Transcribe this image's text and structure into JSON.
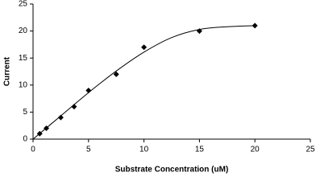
{
  "chart_data": {
    "type": "scatter",
    "x_label": "Substrate Concentration (uM)",
    "y_label": "Current",
    "xlim": [
      0,
      25
    ],
    "xticks": [
      0,
      5,
      10,
      15,
      20,
      25
    ],
    "ylim": [
      0,
      25
    ],
    "yticks": [
      0,
      5,
      10,
      15,
      20,
      25
    ],
    "color": "#000000",
    "points": {
      "x": [
        0.6,
        1.2,
        2.5,
        3.7,
        5,
        7.5,
        10,
        15,
        20
      ],
      "values": [
        1,
        2,
        4,
        6,
        9,
        12,
        17,
        20,
        21
      ]
    },
    "curve": {
      "x": [
        0,
        2.5,
        5,
        7.5,
        10,
        12.5,
        15,
        17.5,
        20
      ],
      "values": [
        0,
        4.3,
        8.6,
        12.6,
        16.1,
        18.8,
        20.3,
        20.8,
        21
      ]
    }
  }
}
